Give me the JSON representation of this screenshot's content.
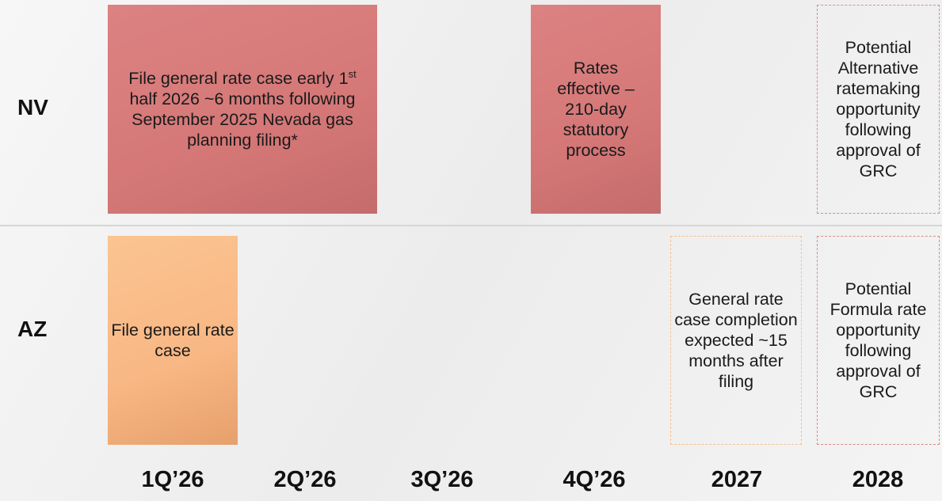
{
  "rows": [
    {
      "label": "NV"
    },
    {
      "label": "AZ"
    }
  ],
  "nv_items": [
    {
      "text_before": "File general rate case early 1",
      "superscript": "st",
      "text_after": " half 2026 ~6 months following September 2025 Nevada gas planning filing*"
    },
    {
      "text": "Rates effective – 210-day statutory process"
    },
    {
      "text": "Potential Alternative ratemaking opportunity following approval of GRC"
    }
  ],
  "az_items": [
    {
      "text": "File general rate case"
    },
    {
      "text": "General rate case completion expected ~15 months after filing"
    },
    {
      "text": "Potential Formula rate opportunity following approval of GRC"
    }
  ],
  "columns": [
    "1Q’26",
    "2Q’26",
    "3Q’26",
    "4Q’26",
    "2027",
    "2028"
  ]
}
